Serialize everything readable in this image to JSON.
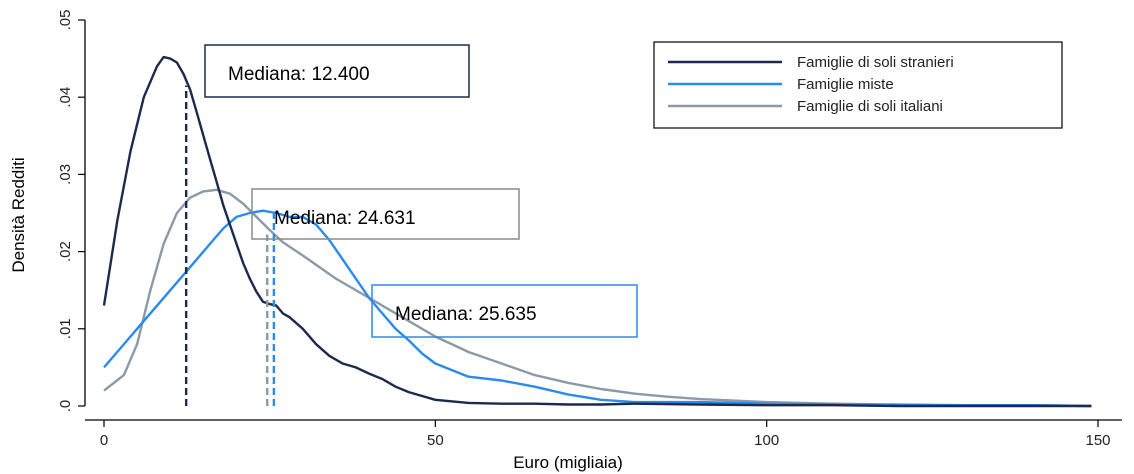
{
  "chart_data": {
    "type": "line",
    "xlabel": "Euro (migliaia)",
    "ylabel": "Densità Redditi",
    "xlim": [
      0,
      150
    ],
    "ylim": [
      0,
      0.05
    ],
    "x_ticks": [
      0,
      50,
      100,
      150
    ],
    "x_tick_labels": [
      "0",
      "50",
      "100",
      "150"
    ],
    "y_ticks": [
      0,
      0.01,
      0.02,
      0.03,
      0.04,
      0.05
    ],
    "y_tick_labels": [
      ".0",
      ".01",
      ".02",
      ".03",
      ".04",
      ".05"
    ],
    "grid": false,
    "legend_position": "top-right",
    "series": [
      {
        "name": "Famiglie di soli stranieri",
        "color": "#1c2a4e",
        "x": [
          0,
          2,
          4,
          6,
          8,
          9,
          10,
          11,
          12,
          13,
          14,
          15,
          16,
          17,
          18,
          19,
          20,
          21,
          22,
          23,
          24,
          25,
          26,
          27,
          28,
          30,
          32,
          34,
          36,
          38,
          40,
          42,
          44,
          46,
          48,
          50,
          55,
          60,
          65,
          70,
          75,
          80,
          90,
          100,
          110,
          120,
          130,
          140,
          149
        ],
        "y": [
          0.013,
          0.024,
          0.033,
          0.04,
          0.044,
          0.0452,
          0.045,
          0.0445,
          0.043,
          0.041,
          0.038,
          0.035,
          0.032,
          0.029,
          0.026,
          0.0235,
          0.021,
          0.0185,
          0.0165,
          0.0148,
          0.0135,
          0.0132,
          0.013,
          0.012,
          0.0115,
          0.01,
          0.008,
          0.0065,
          0.0055,
          0.005,
          0.0042,
          0.0035,
          0.0025,
          0.0018,
          0.0013,
          0.0008,
          0.0004,
          0.0003,
          0.0003,
          0.0002,
          0.0002,
          0.0003,
          0.0002,
          0.0001,
          0.0001,
          0.0,
          0.0,
          0.0,
          0.0
        ]
      },
      {
        "name": "Famiglie miste",
        "color": "#2b8aed",
        "x": [
          0,
          5,
          10,
          12,
          14,
          16,
          18,
          20,
          22,
          24,
          26,
          28,
          30,
          32,
          34,
          36,
          38,
          40,
          42,
          44,
          46,
          48,
          50,
          55,
          60,
          65,
          70,
          75,
          80,
          90,
          100,
          110,
          120,
          130,
          140,
          149
        ],
        "y": [
          0.005,
          0.01,
          0.015,
          0.017,
          0.019,
          0.021,
          0.023,
          0.0245,
          0.025,
          0.0253,
          0.025,
          0.0245,
          0.0245,
          0.0235,
          0.0215,
          0.019,
          0.0165,
          0.014,
          0.012,
          0.01,
          0.0085,
          0.0068,
          0.0055,
          0.0038,
          0.0033,
          0.0025,
          0.0015,
          0.0008,
          0.0005,
          0.0005,
          0.0003,
          0.0002,
          0.0001,
          0.0001,
          0.0001,
          0.0
        ]
      },
      {
        "name": "Famiglie di soli italiani",
        "color": "#8a9aa8",
        "x": [
          0,
          3,
          5,
          7,
          9,
          11,
          13,
          15,
          17,
          19,
          21,
          23,
          25,
          27,
          30,
          35,
          40,
          45,
          50,
          55,
          60,
          65,
          70,
          75,
          80,
          85,
          90,
          95,
          100,
          110,
          120,
          130,
          140,
          149
        ],
        "y": [
          0.002,
          0.004,
          0.008,
          0.015,
          0.021,
          0.025,
          0.027,
          0.0278,
          0.028,
          0.0275,
          0.0262,
          0.0245,
          0.0228,
          0.0212,
          0.0195,
          0.0165,
          0.014,
          0.0115,
          0.009,
          0.007,
          0.0055,
          0.004,
          0.003,
          0.0022,
          0.0016,
          0.0012,
          0.0009,
          0.0007,
          0.0005,
          0.0003,
          0.0002,
          0.0001,
          0.0001,
          0.0
        ]
      }
    ],
    "annotations": [
      {
        "text": "Mediana: 12.400",
        "x": 12.4,
        "series": "Famiglie di soli stranieri",
        "y_top": 0.0415,
        "box_color": "#1c2a4e"
      },
      {
        "text": "Mediana: 24.631",
        "x": 24.631,
        "series": "Famiglie di soli italiani",
        "y_top": 0.0222,
        "box_color": "#8a8a8a"
      },
      {
        "text": "Mediana: 25.635",
        "x": 25.635,
        "series": "Famiglie miste",
        "y_top": 0.0252,
        "box_color": "#2b8aed"
      }
    ]
  }
}
